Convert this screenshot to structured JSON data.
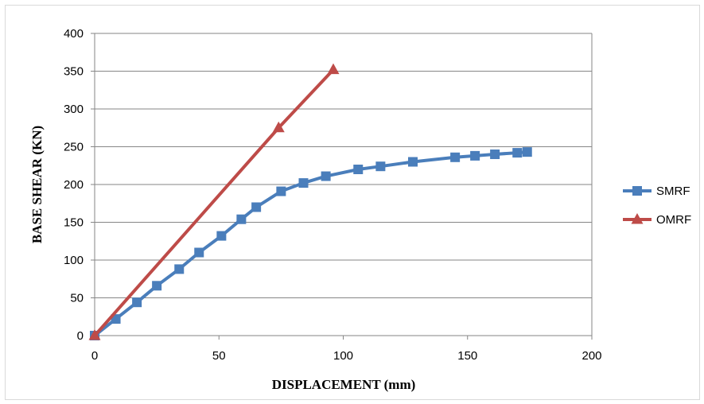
{
  "chart_data": {
    "type": "line",
    "xlabel": "DISPLACEMENT (mm)",
    "ylabel": "BASE SHEAR (KN)",
    "xlim": [
      0,
      200
    ],
    "ylim": [
      0,
      400
    ],
    "xticks": [
      0,
      50,
      100,
      150,
      200
    ],
    "yticks": [
      0,
      50,
      100,
      150,
      200,
      250,
      300,
      350,
      400
    ],
    "grid": "horizontal",
    "legend_position": "right",
    "series": [
      {
        "name": "SMRF",
        "color": "#4a7ebb",
        "marker": "square",
        "x": [
          0,
          8.5,
          17,
          25,
          34,
          42,
          51,
          59,
          65,
          75,
          84,
          93,
          106,
          115,
          128,
          145,
          153,
          161,
          170,
          174
        ],
        "y": [
          0,
          22,
          44,
          66,
          88,
          110,
          132,
          154,
          170,
          191,
          202,
          211,
          220,
          224,
          230,
          236,
          238,
          240,
          242,
          243
        ]
      },
      {
        "name": "OMRF",
        "color": "#be4b48",
        "marker": "triangle",
        "x": [
          0,
          74,
          96
        ],
        "y": [
          0,
          275,
          352
        ]
      }
    ]
  }
}
